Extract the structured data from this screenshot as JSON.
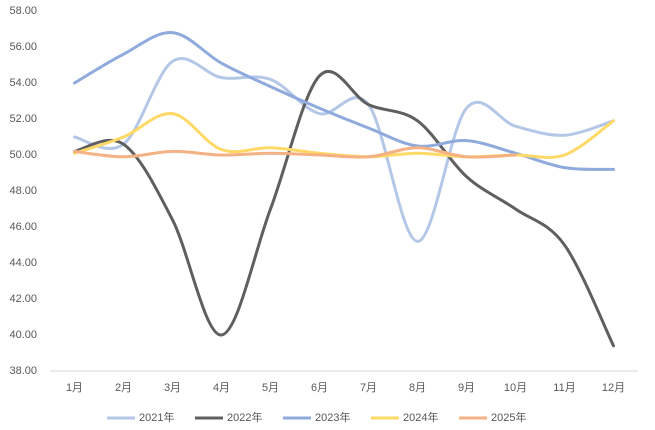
{
  "chart_data": {
    "type": "line",
    "categories": [
      "1月",
      "2月",
      "3月",
      "4月",
      "5月",
      "6月",
      "7月",
      "8月",
      "9月",
      "10月",
      "11月",
      "12月"
    ],
    "series": [
      {
        "name": "2021年",
        "color": "#b4c7e7",
        "values": [
          51.0,
          50.6,
          55.2,
          54.3,
          54.2,
          52.3,
          52.8,
          45.2,
          52.6,
          51.6,
          51.1,
          51.9
        ]
      },
      {
        "name": "2022年",
        "color": "#5f5f5f",
        "values": [
          50.2,
          50.6,
          46.4,
          40.0,
          47.0,
          54.4,
          52.8,
          51.9,
          48.8,
          47.0,
          45.0,
          39.4
        ]
      },
      {
        "name": "2023年",
        "color": "#8faadc",
        "values": [
          54.0,
          55.6,
          56.8,
          55.1,
          53.8,
          52.6,
          51.5,
          50.5,
          50.8,
          50.1,
          49.3,
          49.2
        ]
      },
      {
        "name": "2024年",
        "color": "#ffd966",
        "values": [
          50.1,
          51.0,
          52.3,
          50.3,
          50.4,
          50.1,
          49.9,
          50.1,
          49.9,
          50.0,
          50.0,
          51.9
        ]
      },
      {
        "name": "2025年",
        "color": "#f4b183",
        "values": [
          50.2,
          49.9,
          50.2,
          50.0,
          50.1,
          50.0,
          49.9,
          50.4,
          49.9,
          50.0,
          null,
          null
        ]
      }
    ],
    "ylim": [
      38,
      58
    ],
    "yticks": [
      {
        "value": 38,
        "label": "38.00"
      },
      {
        "value": 40,
        "label": "40.00"
      },
      {
        "value": 42,
        "label": "42.00"
      },
      {
        "value": 44,
        "label": "44.00"
      },
      {
        "value": 46,
        "label": "46.00"
      },
      {
        "value": 48,
        "label": "48.00"
      },
      {
        "value": 50,
        "label": "50.00"
      },
      {
        "value": 52,
        "label": "52.00"
      },
      {
        "value": 54,
        "label": "54.00"
      },
      {
        "value": 56,
        "label": "56.00"
      },
      {
        "value": 58,
        "label": "58.00"
      }
    ],
    "grid": false,
    "legend": "bottom"
  }
}
